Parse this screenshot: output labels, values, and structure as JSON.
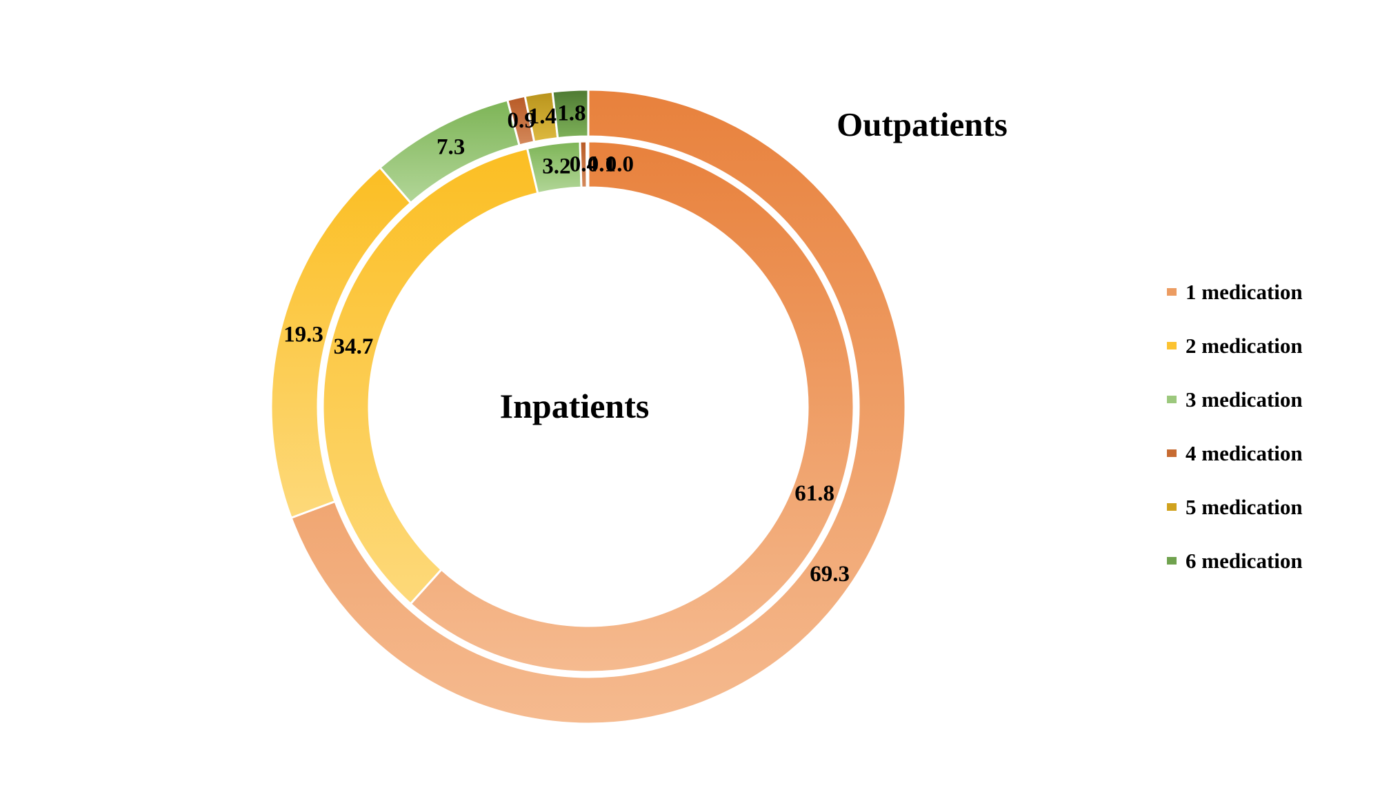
{
  "titles": {
    "outpatients": "Outpatients",
    "inpatients": "Inpatients"
  },
  "legend": {
    "items": [
      {
        "label": "1 medication",
        "color": "#EC9C62"
      },
      {
        "label": "2 medication",
        "color": "#FCC331"
      },
      {
        "label": "3 medication",
        "color": "#9CC87D"
      },
      {
        "label": "4 medication",
        "color": "#C76B32"
      },
      {
        "label": "5 medication",
        "color": "#D0A21E"
      },
      {
        "label": "6 medication",
        "color": "#70A24E"
      }
    ]
  },
  "chart_data": {
    "type": "pie",
    "subtype": "double-ring-donut",
    "categories": [
      "1 medication",
      "2 medication",
      "3 medication",
      "4 medication",
      "5 medication",
      "6 medication"
    ],
    "series": [
      {
        "name": "Outpatients",
        "ring": "outer",
        "values": [
          69.3,
          19.3,
          7.3,
          0.9,
          1.4,
          1.8
        ],
        "labels": [
          "69.3",
          "19.3",
          "7.3",
          "0.9",
          "1.4",
          "1.8"
        ]
      },
      {
        "name": "Inpatients",
        "ring": "inner",
        "values": [
          61.8,
          34.7,
          3.2,
          0.4,
          0.1,
          0.0
        ],
        "labels": [
          "61.8",
          "34.7",
          "3.2",
          "0.4",
          "0.1",
          "0.0"
        ]
      }
    ],
    "slice_gradients": [
      {
        "dark": "#E8813C",
        "light": "#F5BA8F"
      },
      {
        "dark": "#FBBE23",
        "light": "#FDD97A"
      },
      {
        "dark": "#7DB456",
        "light": "#B2D698"
      },
      {
        "dark": "#B85A26",
        "light": "#D4895B"
      },
      {
        "dark": "#B9941C",
        "light": "#DDB940"
      },
      {
        "dark": "#4E7A33",
        "light": "#7EB159"
      }
    ],
    "start_angle_deg": 0,
    "direction": "clockwise",
    "separator_color": "#FFFFFF",
    "label_color": "#000000",
    "legend_position": "right",
    "title": "",
    "notes": "outer ring = Outpatients, inner ring = Inpatients, values are percentages"
  }
}
